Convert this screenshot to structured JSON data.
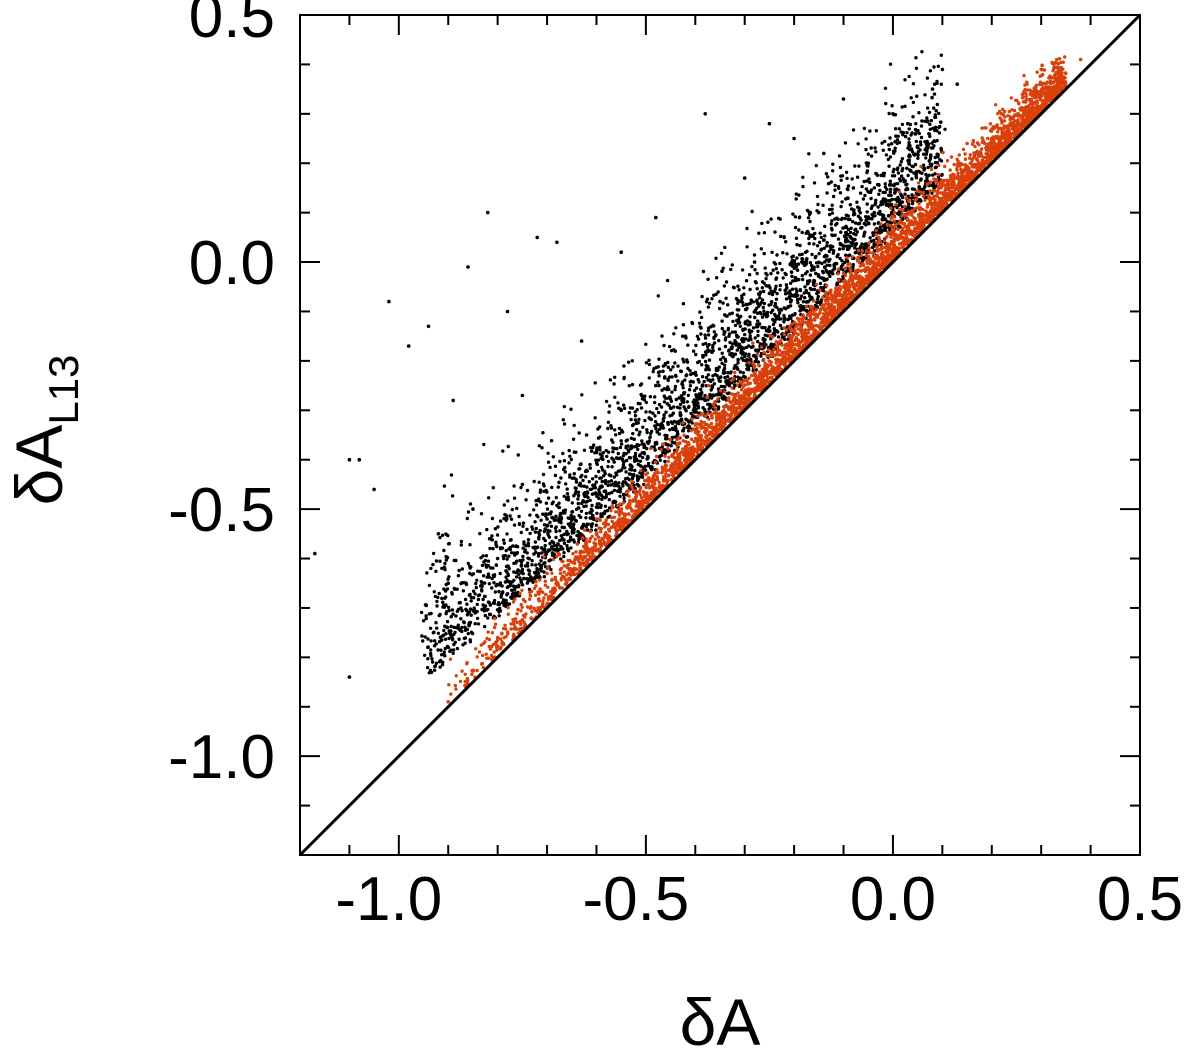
{
  "chart_data": {
    "type": "scatter",
    "title": "",
    "xlabel": "δA",
    "ylabel": {
      "main": "δA",
      "subscript": "L13"
    },
    "xlim": [
      -1.2,
      0.5
    ],
    "ylim": [
      -1.2,
      0.5
    ],
    "x_ticks": [
      -1.0,
      -0.5,
      0.0,
      0.5
    ],
    "y_ticks": [
      -1.0,
      -0.5,
      0.0,
      0.5
    ],
    "x_tick_labels": [
      "-1.0",
      "-0.5",
      "0.0",
      "0.5"
    ],
    "y_tick_labels": [
      "-1.0",
      "-0.5",
      "0.0",
      "0.5"
    ],
    "minor_tick_step": 0.1,
    "grid": false,
    "legend": "none",
    "reference_line": {
      "name": "y = x",
      "from": [
        -1.2,
        -1.2
      ],
      "to": [
        0.5,
        0.5
      ],
      "color": "#000000"
    },
    "series": [
      {
        "color": "#000000",
        "description": "scattered population above the diagonal",
        "points": [
          [
            -1.17,
            -0.59
          ],
          [
            -1.1,
            -0.4
          ],
          [
            -1.08,
            -0.4
          ],
          [
            -1.05,
            -0.46
          ],
          [
            -1.02,
            -0.08
          ],
          [
            -1.1,
            -0.84
          ],
          [
            -0.98,
            -0.17
          ],
          [
            -0.94,
            -0.13
          ],
          [
            -0.89,
            -0.28
          ],
          [
            -0.82,
            0.1
          ],
          [
            -0.75,
            -0.27
          ],
          [
            -0.72,
            0.05
          ],
          [
            -0.68,
            0.04
          ],
          [
            -0.63,
            -0.16
          ],
          [
            -0.86,
            -0.01
          ],
          [
            -0.78,
            -0.1
          ],
          [
            -0.55,
            0.02
          ],
          [
            -0.48,
            0.09
          ],
          [
            -0.38,
            0.3
          ],
          [
            -0.3,
            0.17
          ],
          [
            -0.25,
            0.28
          ],
          [
            -0.2,
            0.25
          ],
          [
            -0.14,
            0.22
          ],
          [
            -0.1,
            0.33
          ],
          [
            -0.05,
            0.2
          ],
          [
            0.0,
            0.3
          ],
          [
            0.03,
            0.28
          ],
          [
            0.08,
            0.35
          ],
          [
            0.1,
            0.39
          ],
          [
            0.13,
            0.36
          ],
          [
            -0.92,
            -0.55
          ],
          [
            -0.9,
            -0.65
          ],
          [
            -0.85,
            -0.5
          ],
          [
            -0.8,
            -0.6
          ],
          [
            -0.75,
            -0.45
          ],
          [
            -0.7,
            -0.52
          ],
          [
            -0.62,
            -0.35
          ],
          [
            -0.55,
            -0.3
          ],
          [
            -0.48,
            -0.25
          ],
          [
            -0.42,
            -0.15
          ],
          [
            -0.35,
            -0.08
          ],
          [
            -0.28,
            0.0
          ],
          [
            -0.22,
            0.05
          ],
          [
            -0.15,
            0.1
          ],
          [
            -0.08,
            0.15
          ]
        ]
      },
      {
        "color": "#d9400b",
        "description": "tight population just above the diagonal",
        "points": [
          [
            -0.9,
            -0.89
          ],
          [
            -0.8,
            -0.76
          ],
          [
            -0.7,
            -0.63
          ],
          [
            -0.6,
            -0.52
          ],
          [
            -0.5,
            -0.43
          ],
          [
            -0.4,
            -0.33
          ],
          [
            -0.3,
            -0.24
          ],
          [
            -0.2,
            -0.14
          ],
          [
            -0.1,
            -0.04
          ],
          [
            0.0,
            0.06
          ],
          [
            0.1,
            0.14
          ],
          [
            0.2,
            0.25
          ],
          [
            0.3,
            0.39
          ],
          [
            0.38,
            0.41
          ],
          [
            0.33,
            0.37
          ],
          [
            0.22,
            0.3
          ],
          [
            0.15,
            0.24
          ]
        ]
      }
    ]
  }
}
